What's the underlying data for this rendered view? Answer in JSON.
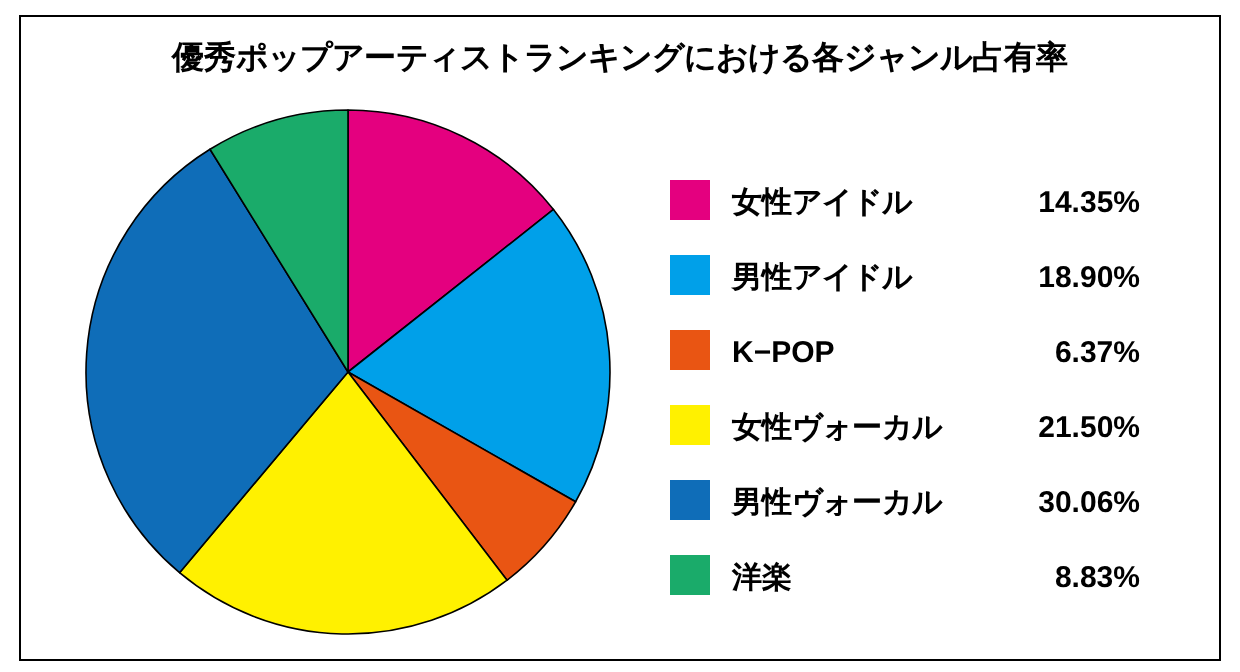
{
  "chart_data": {
    "type": "pie",
    "title": "優秀ポップアーティストランキングにおける各ジャンル占有率",
    "categories": [
      "女性アイドル",
      "男性アイドル",
      "K−POP",
      "女性ヴォーカル",
      "男性ヴォーカル",
      "洋楽"
    ],
    "values": [
      14.35,
      18.9,
      6.37,
      21.5,
      30.06,
      8.83
    ],
    "value_labels": [
      "14.35%",
      "18.90%",
      "6.37%",
      "21.50%",
      "30.06%",
      "8.83%"
    ],
    "colors": [
      "#e4007f",
      "#00a0e9",
      "#e95513",
      "#fff100",
      "#0f6db8",
      "#1aab6a"
    ],
    "legend": "right"
  }
}
